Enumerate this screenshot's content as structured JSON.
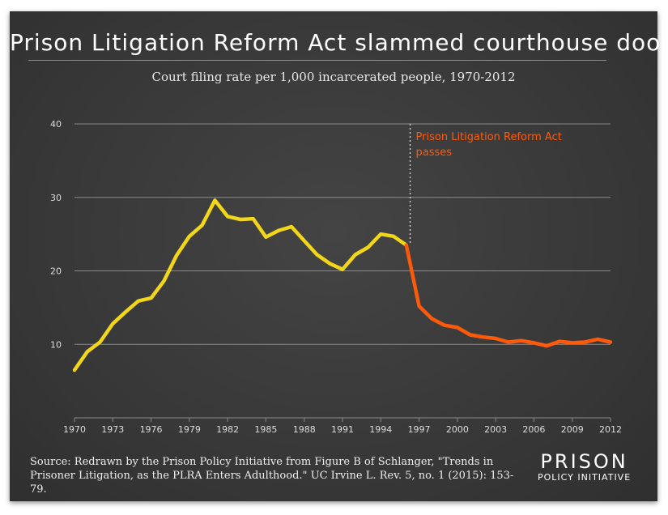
{
  "title": "Prison Litigation Reform Act slammed courthouse door",
  "subtitle": "Court filing rate per 1,000 incarcerated people, 1970-2012",
  "source": "Source: Redrawn by the Prison Policy Initiative from Figure B of Schlanger, \"Trends in Prisoner Litigation, as the PLRA Enters Adulthood.\" UC Irvine L. Rev. 5, no. 1 (2015): 153-79.",
  "logo": {
    "top": "PRISON",
    "bottom": "POLICY INITIATIVE"
  },
  "colors": {
    "background": "#3b3b3b",
    "pre_plra": "#f2d619",
    "post_plra": "#ff5a0a",
    "grid": "#8a8a8a",
    "text": "#ffffff"
  },
  "chart_data": {
    "type": "line",
    "title": "Court filing rate per 1,000 incarcerated people, 1970-2012",
    "xlabel": "",
    "ylabel": "",
    "xlim": [
      1970,
      2012
    ],
    "ylim": [
      0,
      40
    ],
    "yticks": [
      10,
      20,
      30,
      40
    ],
    "xticks": [
      1970,
      1973,
      1976,
      1979,
      1982,
      1985,
      1988,
      1991,
      1994,
      1997,
      2000,
      2003,
      2006,
      2009,
      2012
    ],
    "grid": "horizontal",
    "series": [
      {
        "color": "#f2d619",
        "x": [
          1970,
          1971,
          1972,
          1973,
          1974,
          1975,
          1976,
          1977,
          1978,
          1979,
          1980,
          1981,
          1982,
          1983,
          1984,
          1985,
          1986,
          1987,
          1988,
          1989,
          1990,
          1991,
          1992,
          1993,
          1994,
          1995,
          1996
        ],
        "y": [
          6.5,
          9.0,
          10.3,
          12.8,
          14.4,
          15.9,
          16.3,
          18.6,
          22.1,
          24.7,
          26.2,
          29.6,
          27.4,
          27.0,
          27.1,
          24.6,
          25.5,
          26.0,
          24.1,
          22.2,
          21.0,
          20.2,
          22.2,
          23.2,
          25.0,
          24.7,
          23.5
        ]
      },
      {
        "color": "#ff5a0a",
        "x": [
          1996,
          1997,
          1998,
          1999,
          2000,
          2001,
          2002,
          2003,
          2004,
          2005,
          2006,
          2007,
          2008,
          2009,
          2010,
          2011,
          2012
        ],
        "y": [
          23.5,
          15.2,
          13.5,
          12.6,
          12.3,
          11.3,
          11.0,
          10.8,
          10.3,
          10.5,
          10.2,
          9.8,
          10.4,
          10.2,
          10.3,
          10.7,
          10.3
        ]
      }
    ],
    "annotations": [
      {
        "x": 1996.3,
        "lines": [
          "Prison Litigation Reform Act",
          "passes"
        ],
        "color": "#ff5a0a",
        "style": "dotted-vertical"
      }
    ]
  }
}
